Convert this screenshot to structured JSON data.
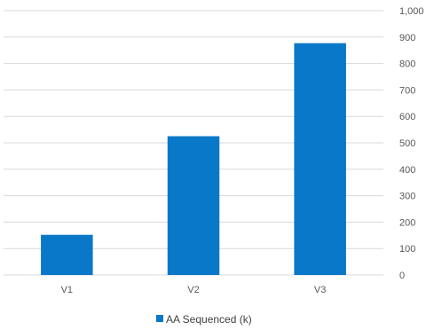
{
  "chart_data": {
    "type": "bar",
    "categories": [
      "V1",
      "V2",
      "V3"
    ],
    "series": [
      {
        "name": "AA Sequenced (k)",
        "values": [
          152,
          525,
          877
        ],
        "color": "#0a78c8"
      }
    ],
    "ylim": [
      0,
      1000
    ],
    "y_ticks": [
      0,
      100,
      200,
      300,
      400,
      500,
      600,
      700,
      800,
      900,
      1000
    ],
    "y_tick_labels": [
      "0",
      "100",
      "200",
      "300",
      "400",
      "500",
      "600",
      "700",
      "800",
      "900",
      "1,000"
    ],
    "y_axis_side": "right",
    "grid": true,
    "legend": "bottom",
    "grid_color": "#d9d9d9",
    "text_color": "#595959"
  }
}
